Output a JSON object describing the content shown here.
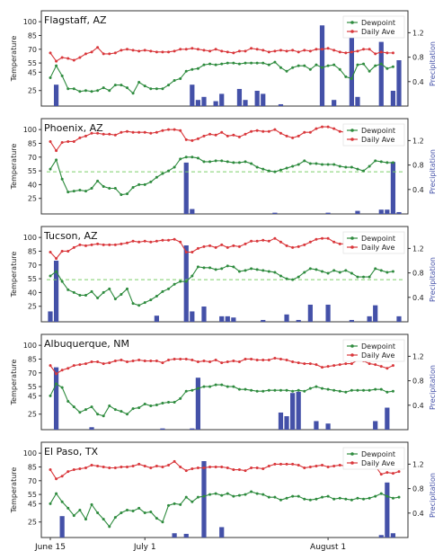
{
  "colors": {
    "dewpoint": "#2e8b3e",
    "daily_ave": "#d9373b",
    "precip": "#4451a8",
    "threshold": "#7ccf6a",
    "frame": "#333333",
    "y2label": "#4451a8"
  },
  "chart_data": [
    {
      "type": "line",
      "title": "Flagstaff, AZ",
      "ylabel": "Temperature",
      "y2label": "Precipitation",
      "ylim": [
        12,
        108
      ],
      "y2lim": [
        0,
        1.5
      ],
      "yticks": [
        "25",
        "45",
        "55",
        "70",
        "85",
        "100"
      ],
      "y2ticks": [
        "0.4",
        "0.8",
        "1.2"
      ],
      "threshold": null,
      "legend": [
        "Dewpoint",
        "Daily Ave"
      ],
      "legend_position": "top-right",
      "x_label_visible": false,
      "series": [
        {
          "name": "Dewpoint",
          "values": [
            39,
            52,
            41,
            27,
            27,
            24,
            25,
            24,
            25,
            28,
            25,
            31,
            31,
            28,
            22,
            34,
            30,
            27,
            27,
            27,
            31,
            36,
            38,
            46,
            48,
            49,
            53,
            54,
            53,
            54,
            55,
            55,
            54,
            55,
            55,
            55,
            55,
            53,
            56,
            50,
            46,
            50,
            52,
            52,
            48,
            53,
            50,
            52,
            53,
            48,
            40,
            38,
            53,
            54,
            46,
            52,
            54,
            49,
            51
          ]
        },
        {
          "name": "Daily Ave",
          "values": [
            66,
            57,
            61,
            60,
            58,
            61,
            65,
            67,
            72,
            65,
            65,
            66,
            69,
            70,
            69,
            68,
            69,
            68,
            67,
            67,
            67,
            68,
            70,
            70,
            71,
            70,
            69,
            68,
            70,
            68,
            67,
            66,
            68,
            68,
            71,
            70,
            69,
            67,
            68,
            69,
            68,
            69,
            67,
            69,
            68,
            70,
            70,
            71,
            69,
            67,
            66,
            67,
            68,
            70,
            70,
            65,
            67,
            66,
            66
          ]
        },
        {
          "name": "Precipitation",
          "bars": [
            [
              1,
              0.35
            ],
            [
              24,
              0.35
            ],
            [
              25,
              0.1
            ],
            [
              26,
              0.15
            ],
            [
              28,
              0.08
            ],
            [
              29,
              0.2
            ],
            [
              32,
              0.28
            ],
            [
              33,
              0.1
            ],
            [
              35,
              0.25
            ],
            [
              36,
              0.2
            ],
            [
              39,
              0.03
            ],
            [
              46,
              1.32
            ],
            [
              48,
              0.1
            ],
            [
              51,
              1.22
            ],
            [
              52,
              0.15
            ],
            [
              56,
              1.05
            ],
            [
              58,
              0.25
            ],
            [
              59,
              0.75
            ]
          ]
        }
      ]
    },
    {
      "type": "line",
      "title": "Phoenix, AZ",
      "ylabel": "Temperature",
      "y2label": "Precipitation",
      "ylim": [
        12,
        108
      ],
      "y2lim": [
        0,
        1.5
      ],
      "yticks": [
        "25",
        "40",
        "55",
        "70",
        "85",
        "100"
      ],
      "y2ticks": [
        "0.4",
        "0.8",
        "1.2"
      ],
      "threshold": 54,
      "legend": [
        "Dewpoint",
        "Daily Ave"
      ],
      "legend_position": "top-right",
      "x_label_visible": false,
      "series": [
        {
          "name": "Dewpoint",
          "values": [
            57,
            67,
            46,
            32,
            33,
            34,
            33,
            36,
            44,
            38,
            36,
            36,
            29,
            30,
            37,
            40,
            40,
            43,
            48,
            52,
            55,
            59,
            68,
            70,
            70,
            69,
            65,
            65,
            66,
            66,
            65,
            64,
            64,
            65,
            63,
            59,
            57,
            55,
            54,
            56,
            58,
            60,
            62,
            66,
            63,
            63,
            62,
            62,
            62,
            60,
            59,
            59,
            57,
            55,
            60,
            66,
            65,
            64,
            64
          ]
        },
        {
          "name": "Daily Ave",
          "values": [
            87,
            77,
            86,
            87,
            87,
            91,
            93,
            96,
            96,
            95,
            95,
            94,
            97,
            98,
            97,
            97,
            97,
            96,
            97,
            99,
            100,
            100,
            99,
            89,
            88,
            90,
            93,
            95,
            94,
            97,
            93,
            94,
            92,
            95,
            98,
            99,
            98,
            98,
            100,
            96,
            93,
            91,
            93,
            97,
            97,
            101,
            103,
            103,
            101,
            98,
            97,
            96,
            98,
            97,
            92,
            88,
            85,
            87,
            86
          ]
        },
        {
          "name": "Precipitation",
          "bars": [
            [
              23,
              0.84
            ],
            [
              24,
              0.08
            ],
            [
              38,
              0.02
            ],
            [
              47,
              0.02
            ],
            [
              52,
              0.05
            ],
            [
              56,
              0.07
            ],
            [
              57,
              0.07
            ],
            [
              58,
              0.85
            ],
            [
              59,
              0.03
            ]
          ]
        }
      ]
    },
    {
      "type": "line",
      "title": "Tucson, AZ",
      "ylabel": "Temperature",
      "y2label": "Precipitation",
      "ylim": [
        12,
        108
      ],
      "y2lim": [
        0,
        1.5
      ],
      "yticks": [
        "25",
        "40",
        "55",
        "70",
        "85",
        "100"
      ],
      "y2ticks": [
        "0.4",
        "0.8",
        "1.2"
      ],
      "threshold": 54,
      "legend": [
        "Dewpoint",
        "Daily Ave"
      ],
      "legend_position": "top-right",
      "x_label_visible": false,
      "series": [
        {
          "name": "Dewpoint",
          "values": [
            58,
            63,
            52,
            43,
            40,
            37,
            37,
            41,
            34,
            40,
            44,
            33,
            38,
            44,
            28,
            26,
            29,
            32,
            36,
            41,
            44,
            49,
            52,
            52,
            58,
            68,
            67,
            67,
            65,
            66,
            69,
            68,
            63,
            64,
            66,
            65,
            64,
            63,
            62,
            58,
            55,
            54,
            57,
            62,
            66,
            65,
            63,
            61,
            64,
            62,
            64,
            61,
            57,
            57,
            57,
            66,
            64,
            62,
            63
          ]
        },
        {
          "name": "Daily Ave",
          "values": [
            84,
            77,
            85,
            85,
            89,
            92,
            91,
            92,
            93,
            92,
            92,
            92,
            93,
            94,
            96,
            95,
            96,
            95,
            96,
            97,
            97,
            98,
            95,
            84,
            84,
            88,
            90,
            91,
            89,
            92,
            89,
            91,
            90,
            93,
            96,
            96,
            97,
            96,
            99,
            95,
            91,
            89,
            90,
            92,
            95,
            98,
            99,
            99,
            95,
            93,
            93,
            91,
            93,
            92,
            92,
            85,
            85,
            86,
            86
          ]
        },
        {
          "name": "Precipitation",
          "bars": [
            [
              0,
              0.17
            ],
            [
              1,
              1.0
            ],
            [
              18,
              0.1
            ],
            [
              23,
              1.25
            ],
            [
              24,
              0.17
            ],
            [
              26,
              0.25
            ],
            [
              29,
              0.09
            ],
            [
              30,
              0.09
            ],
            [
              31,
              0.07
            ],
            [
              36,
              0.03
            ],
            [
              40,
              0.12
            ],
            [
              42,
              0.03
            ],
            [
              44,
              0.28
            ],
            [
              47,
              0.28
            ],
            [
              51,
              0.03
            ],
            [
              54,
              0.09
            ],
            [
              55,
              0.27
            ],
            [
              59,
              0.09
            ]
          ]
        }
      ]
    },
    {
      "type": "line",
      "title": "Albuquerque, NM",
      "ylabel": "Temperature",
      "y2label": "Precipitation",
      "ylim": [
        12,
        108
      ],
      "y2lim": [
        0,
        1.5
      ],
      "yticks": [
        "25",
        "45",
        "55",
        "70",
        "85",
        "100"
      ],
      "y2ticks": [
        "0.4",
        "0.8",
        "1.2"
      ],
      "threshold": null,
      "legend": [
        "Dewpoint",
        "Daily Ave"
      ],
      "legend_position": "top-right",
      "x_label_visible": false,
      "series": [
        {
          "name": "Dewpoint",
          "values": [
            45,
            58,
            54,
            39,
            33,
            27,
            30,
            33,
            25,
            23,
            34,
            30,
            28,
            25,
            31,
            32,
            36,
            34,
            35,
            37,
            38,
            38,
            42,
            50,
            51,
            53,
            55,
            55,
            57,
            57,
            55,
            55,
            52,
            52,
            51,
            50,
            50,
            51,
            51,
            51,
            51,
            50,
            51,
            50,
            53,
            55,
            53,
            52,
            51,
            50,
            49,
            51,
            51,
            51,
            51,
            52,
            52,
            49,
            50
          ]
        },
        {
          "name": "Daily Ave",
          "values": [
            78,
            69,
            73,
            75,
            78,
            79,
            80,
            82,
            82,
            80,
            81,
            83,
            84,
            82,
            83,
            84,
            83,
            83,
            83,
            81,
            84,
            85,
            85,
            85,
            84,
            82,
            83,
            82,
            84,
            81,
            82,
            83,
            82,
            85,
            85,
            84,
            84,
            84,
            86,
            85,
            84,
            82,
            81,
            80,
            80,
            79,
            76,
            77,
            78,
            79,
            80,
            80,
            84,
            83,
            80,
            79,
            77,
            75,
            78
          ]
        },
        {
          "name": "Precipitation",
          "bars": [
            [
              1,
              1.02
            ],
            [
              7,
              0.04
            ],
            [
              19,
              0.02
            ],
            [
              24,
              0.02
            ],
            [
              25,
              0.85
            ],
            [
              39,
              0.28
            ],
            [
              40,
              0.22
            ],
            [
              41,
              0.6
            ],
            [
              42,
              0.62
            ],
            [
              45,
              0.14
            ],
            [
              47,
              0.1
            ],
            [
              55,
              0.14
            ],
            [
              57,
              0.36
            ]
          ]
        }
      ]
    },
    {
      "type": "line",
      "title": "El Paso, TX",
      "ylabel": "Temperature",
      "y2label": "Precipitation",
      "ylim": [
        12,
        108
      ],
      "y2lim": [
        0,
        1.5
      ],
      "yticks": [
        "25",
        "45",
        "55",
        "70",
        "85",
        "100"
      ],
      "y2ticks": [
        "0.4",
        "0.8",
        "1.2"
      ],
      "threshold": null,
      "legend": [
        "Dewpoint",
        "Daily Ave"
      ],
      "legend_position": "top-right",
      "x_label_visible": true,
      "x_ticks": [
        {
          "index": 0,
          "label": "June 15"
        },
        {
          "index": 16,
          "label": "July 1"
        },
        {
          "index": 47,
          "label": "August 1"
        }
      ],
      "series": [
        {
          "name": "Dewpoint",
          "values": [
            45,
            56,
            47,
            40,
            32,
            38,
            28,
            44,
            35,
            28,
            20,
            30,
            35,
            38,
            37,
            40,
            35,
            36,
            29,
            25,
            43,
            45,
            44,
            52,
            47,
            52,
            53,
            55,
            56,
            54,
            56,
            53,
            54,
            55,
            58,
            56,
            55,
            52,
            52,
            49,
            51,
            53,
            53,
            50,
            49,
            50,
            52,
            53,
            50,
            51,
            50,
            49,
            51,
            50,
            51,
            53,
            56,
            53,
            51,
            52
          ]
        },
        {
          "name": "Daily Ave",
          "values": [
            82,
            72,
            75,
            80,
            82,
            83,
            84,
            87,
            86,
            85,
            84,
            84,
            85,
            85,
            86,
            88,
            86,
            84,
            86,
            85,
            87,
            91,
            85,
            81,
            83,
            84,
            84,
            85,
            85,
            85,
            84,
            82,
            82,
            81,
            84,
            84,
            83,
            86,
            88,
            88,
            88,
            88,
            87,
            84,
            85,
            86,
            87,
            85,
            86,
            87,
            86,
            86,
            85,
            86,
            87,
            86,
            77,
            79,
            78,
            80
          ]
        },
        {
          "name": "Precipitation",
          "bars": [
            [
              2,
              0.35
            ],
            [
              21,
              0.07
            ],
            [
              23,
              0.06
            ],
            [
              26,
              1.25
            ],
            [
              29,
              0.17
            ],
            [
              56,
              0.04
            ],
            [
              57,
              0.9
            ],
            [
              58,
              0.07
            ]
          ]
        }
      ]
    }
  ]
}
